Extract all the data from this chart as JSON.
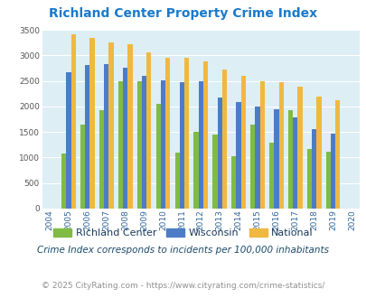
{
  "title": "Richland Center Property Crime Index",
  "years": [
    2004,
    2005,
    2006,
    2007,
    2008,
    2009,
    2010,
    2011,
    2012,
    2013,
    2014,
    2015,
    2016,
    2017,
    2018,
    2019,
    2020
  ],
  "richland_center": [
    null,
    1080,
    1640,
    1920,
    2500,
    2500,
    2050,
    1100,
    1500,
    1450,
    1020,
    1650,
    1290,
    1920,
    1160,
    1120,
    null
  ],
  "wisconsin": [
    null,
    2670,
    2810,
    2830,
    2760,
    2600,
    2510,
    2470,
    2490,
    2180,
    2090,
    2000,
    1950,
    1780,
    1550,
    1460,
    null
  ],
  "national": [
    null,
    3420,
    3340,
    3260,
    3210,
    3050,
    2950,
    2950,
    2880,
    2730,
    2600,
    2500,
    2480,
    2390,
    2200,
    2120,
    null
  ],
  "bar_colors": {
    "richland_center": "#80bb44",
    "wisconsin": "#4d7cc7",
    "national": "#f0b840"
  },
  "legend_labels": [
    "Richland Center",
    "Wisconsin",
    "National"
  ],
  "footnote1": "Crime Index corresponds to incidents per 100,000 inhabitants",
  "footnote2": "© 2025 CityRating.com - https://www.cityrating.com/crime-statistics/",
  "ylim": [
    0,
    3500
  ],
  "yticks": [
    0,
    500,
    1000,
    1500,
    2000,
    2500,
    3000,
    3500
  ],
  "background_color": "#ddeef5",
  "title_color": "#1a7acc",
  "legend_text_color": "#1a3a5c",
  "footnote1_color": "#1a4a6a",
  "footnote2_color": "#909090",
  "footnote2_link_color": "#4488cc"
}
